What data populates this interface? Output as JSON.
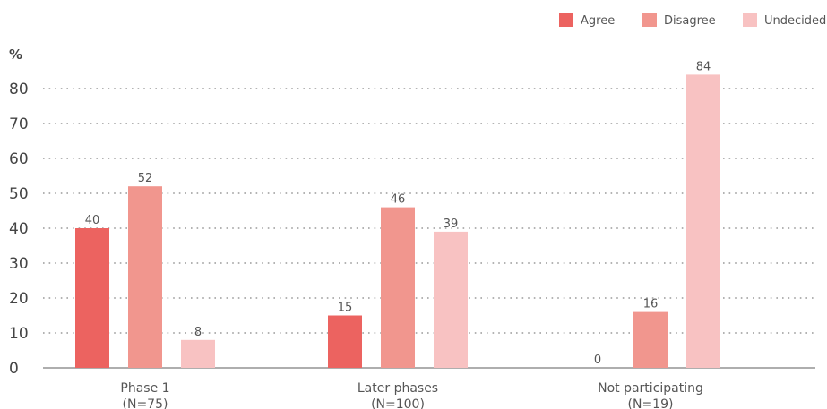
{
  "chart_data": {
    "type": "bar",
    "unit_label": "%",
    "categories": [
      {
        "label": "Phase 1",
        "sub": "(N=75)"
      },
      {
        "label": "Later phases",
        "sub": "(N=100)"
      },
      {
        "label": "Not participating",
        "sub": "(N=19)"
      }
    ],
    "series": [
      {
        "name": "Agree",
        "color": "#ec6360",
        "values": [
          40,
          15,
          0
        ]
      },
      {
        "name": "Disagree",
        "color": "#f1968e",
        "values": [
          52,
          46,
          16
        ]
      },
      {
        "name": "Undecided",
        "color": "#f8c2c2",
        "values": [
          8,
          39,
          84
        ]
      }
    ],
    "ylim": [
      0,
      80
    ],
    "yticks": [
      0,
      10,
      20,
      30,
      40,
      50,
      60,
      70,
      80
    ],
    "grid": true,
    "legend_position": "top-right"
  }
}
